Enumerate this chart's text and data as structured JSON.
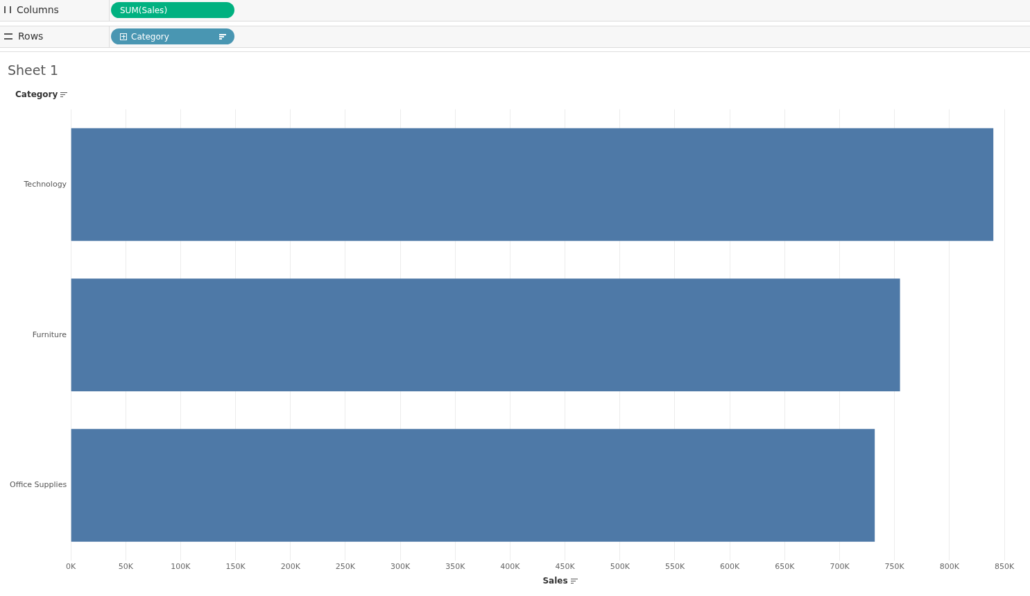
{
  "chart_data": {
    "type": "bar",
    "orientation": "horizontal",
    "title": "Sheet 1",
    "ylabel": "Category",
    "xlabel": "Sales",
    "categories": [
      "Technology",
      "Furniture",
      "Office Supplies"
    ],
    "values": [
      840,
      755,
      732
    ],
    "color": "#4e79a7",
    "xlim": [
      0,
      850
    ],
    "xticks": [
      {
        "value": 0,
        "label": "0K"
      },
      {
        "value": 50,
        "label": "50K"
      },
      {
        "value": 100,
        "label": "100K"
      },
      {
        "value": 150,
        "label": "150K"
      },
      {
        "value": 200,
        "label": "200K"
      },
      {
        "value": 250,
        "label": "250K"
      },
      {
        "value": 300,
        "label": "300K"
      },
      {
        "value": 350,
        "label": "350K"
      },
      {
        "value": 400,
        "label": "400K"
      },
      {
        "value": 450,
        "label": "450K"
      },
      {
        "value": 500,
        "label": "500K"
      },
      {
        "value": 550,
        "label": "550K"
      },
      {
        "value": 600,
        "label": "600K"
      },
      {
        "value": 650,
        "label": "650K"
      },
      {
        "value": 700,
        "label": "700K"
      },
      {
        "value": 750,
        "label": "750K"
      },
      {
        "value": 800,
        "label": "800K"
      },
      {
        "value": 850,
        "label": "850K"
      }
    ],
    "grid": "x",
    "legend": false,
    "annotations": [
      "Columns",
      "SUM(Sales)",
      "Rows",
      "Category"
    ]
  }
}
